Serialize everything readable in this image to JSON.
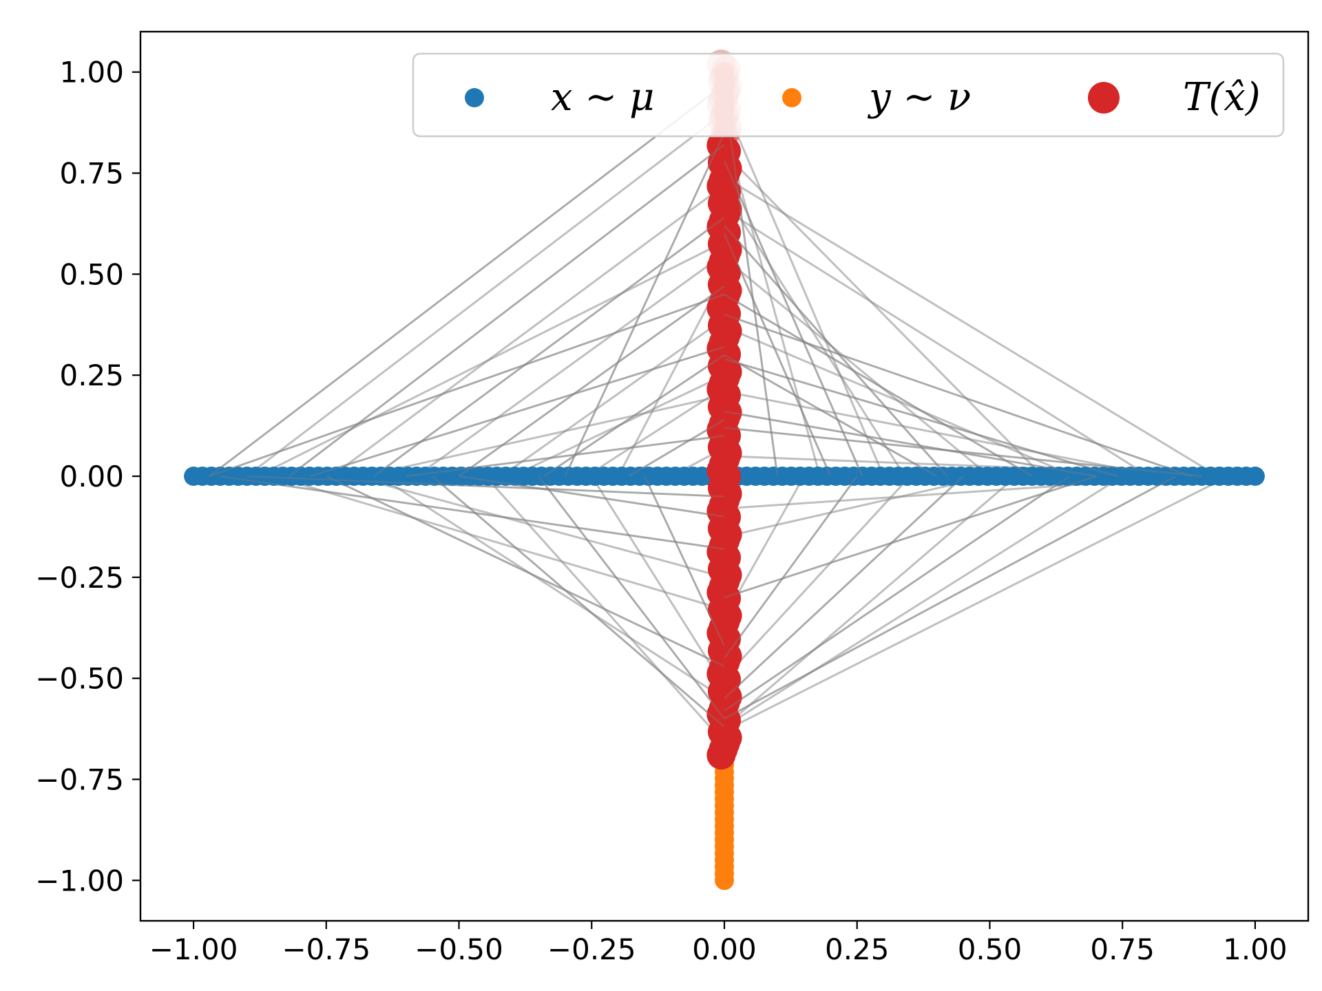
{
  "chart_data": {
    "type": "scatter",
    "title": "",
    "xlabel": "",
    "ylabel": "",
    "xlim": [
      -1.1,
      1.1
    ],
    "ylim": [
      -1.1,
      1.1
    ],
    "grid": false,
    "legend_position": "top-right",
    "x_ticks": [
      "−1.00",
      "−0.75",
      "−0.50",
      "−0.25",
      "0.00",
      "0.25",
      "0.50",
      "0.75",
      "1.00"
    ],
    "y_ticks": [
      "1.00",
      "0.75",
      "0.50",
      "0.25",
      "0.00",
      "−0.25",
      "−0.50",
      "−0.75",
      "−1.00"
    ],
    "x_tick_values": [
      -1.0,
      -0.75,
      -0.5,
      -0.25,
      0.0,
      0.25,
      0.5,
      0.75,
      1.0
    ],
    "y_tick_values": [
      1.0,
      0.75,
      0.5,
      0.25,
      0.0,
      -0.25,
      -0.5,
      -0.75,
      -1.0
    ],
    "series": [
      {
        "name": "x ~ μ",
        "color": "#1f77b4",
        "x_range": [
          -1.0,
          1.0
        ],
        "y_value": 0.0,
        "n_points": 120
      },
      {
        "name": "y ~ ν",
        "color": "#ff7f0e",
        "x_value": 0.0,
        "y_range": [
          -1.0,
          1.0
        ],
        "n_points": 120
      },
      {
        "name": "T(x̂)",
        "color": "#d62728",
        "x_value": 0.0,
        "y_range": [
          -0.69,
          1.02
        ],
        "n_points": 120
      }
    ],
    "connection_lines": {
      "color": "#808080",
      "opacity": 0.5,
      "count": 120,
      "segments": [
        [
          -0.97,
          0.0,
          0.0,
          0.97
        ],
        [
          -0.9,
          0.0,
          0.0,
          0.9
        ],
        [
          -0.82,
          0.0,
          0.0,
          0.82
        ],
        [
          -0.74,
          0.0,
          0.0,
          0.72
        ],
        [
          -0.66,
          0.0,
          0.0,
          0.64
        ],
        [
          -0.58,
          0.0,
          0.0,
          0.55
        ],
        [
          -0.5,
          0.0,
          0.0,
          0.47
        ],
        [
          -0.42,
          0.0,
          0.0,
          0.39
        ],
        [
          -0.34,
          0.0,
          0.0,
          0.3
        ],
        [
          -0.26,
          0.0,
          0.0,
          0.22
        ],
        [
          -0.18,
          0.0,
          0.0,
          0.14
        ],
        [
          -0.1,
          0.0,
          0.0,
          0.07
        ],
        [
          0.1,
          0.0,
          0.0,
          0.95
        ],
        [
          0.18,
          0.0,
          0.0,
          0.86
        ],
        [
          0.26,
          0.0,
          0.0,
          0.78
        ],
        [
          0.34,
          0.0,
          0.0,
          0.7
        ],
        [
          0.42,
          0.0,
          0.0,
          0.62
        ],
        [
          0.5,
          0.0,
          0.0,
          0.54
        ],
        [
          0.58,
          0.0,
          0.0,
          0.45
        ],
        [
          0.66,
          0.0,
          0.0,
          0.37
        ],
        [
          0.74,
          0.0,
          0.0,
          0.29
        ],
        [
          0.82,
          0.0,
          0.0,
          0.21
        ],
        [
          0.9,
          0.0,
          0.0,
          0.12
        ],
        [
          0.97,
          0.0,
          0.0,
          0.05
        ],
        [
          -0.95,
          0.0,
          0.0,
          -0.18
        ],
        [
          -0.85,
          0.0,
          0.0,
          -0.33
        ],
        [
          -0.75,
          0.0,
          0.0,
          -0.47
        ],
        [
          -0.65,
          0.0,
          0.0,
          -0.55
        ],
        [
          -0.55,
          0.0,
          0.0,
          -0.62
        ],
        [
          -0.45,
          0.0,
          0.0,
          -0.66
        ],
        [
          -0.35,
          0.0,
          0.0,
          -0.6
        ],
        [
          -0.25,
          0.0,
          0.0,
          -0.52
        ],
        [
          -0.15,
          0.0,
          0.0,
          -0.42
        ],
        [
          0.15,
          0.0,
          0.0,
          -0.35
        ],
        [
          0.25,
          0.0,
          0.0,
          -0.45
        ],
        [
          0.35,
          0.0,
          0.0,
          -0.5
        ],
        [
          0.45,
          0.0,
          0.0,
          -0.55
        ],
        [
          0.55,
          0.0,
          0.0,
          -0.62
        ],
        [
          0.65,
          0.0,
          0.0,
          -0.58
        ],
        [
          0.75,
          0.0,
          0.0,
          -0.62
        ],
        [
          0.85,
          0.0,
          0.0,
          -0.6
        ],
        [
          0.95,
          0.0,
          0.0,
          -0.63
        ],
        [
          -0.97,
          0.0,
          0.0,
          0.45
        ],
        [
          -0.88,
          0.0,
          0.0,
          0.58
        ],
        [
          -0.78,
          0.0,
          0.0,
          0.32
        ],
        [
          -0.68,
          0.0,
          0.0,
          0.2
        ],
        [
          -0.6,
          0.0,
          0.0,
          0.1
        ],
        [
          -0.4,
          0.0,
          0.0,
          0.25
        ],
        [
          -0.3,
          0.0,
          0.0,
          0.85
        ],
        [
          -0.2,
          0.0,
          0.0,
          0.5
        ],
        [
          0.2,
          0.0,
          0.0,
          0.6
        ],
        [
          0.3,
          0.0,
          0.0,
          0.92
        ],
        [
          0.4,
          0.0,
          0.0,
          0.3
        ],
        [
          0.6,
          0.0,
          0.0,
          0.8
        ],
        [
          0.7,
          0.0,
          0.0,
          0.16
        ],
        [
          0.8,
          0.0,
          0.0,
          0.66
        ],
        [
          0.88,
          0.0,
          0.0,
          0.4
        ],
        [
          0.93,
          0.0,
          0.0,
          0.74
        ],
        [
          -0.9,
          0.0,
          0.0,
          -0.05
        ],
        [
          -0.7,
          0.0,
          0.0,
          -0.25
        ],
        [
          -0.5,
          0.0,
          0.0,
          -0.1
        ],
        [
          0.5,
          0.0,
          0.0,
          -0.15
        ],
        [
          0.7,
          0.0,
          0.0,
          -0.3
        ],
        [
          0.9,
          0.0,
          0.0,
          -0.08
        ]
      ]
    }
  }
}
